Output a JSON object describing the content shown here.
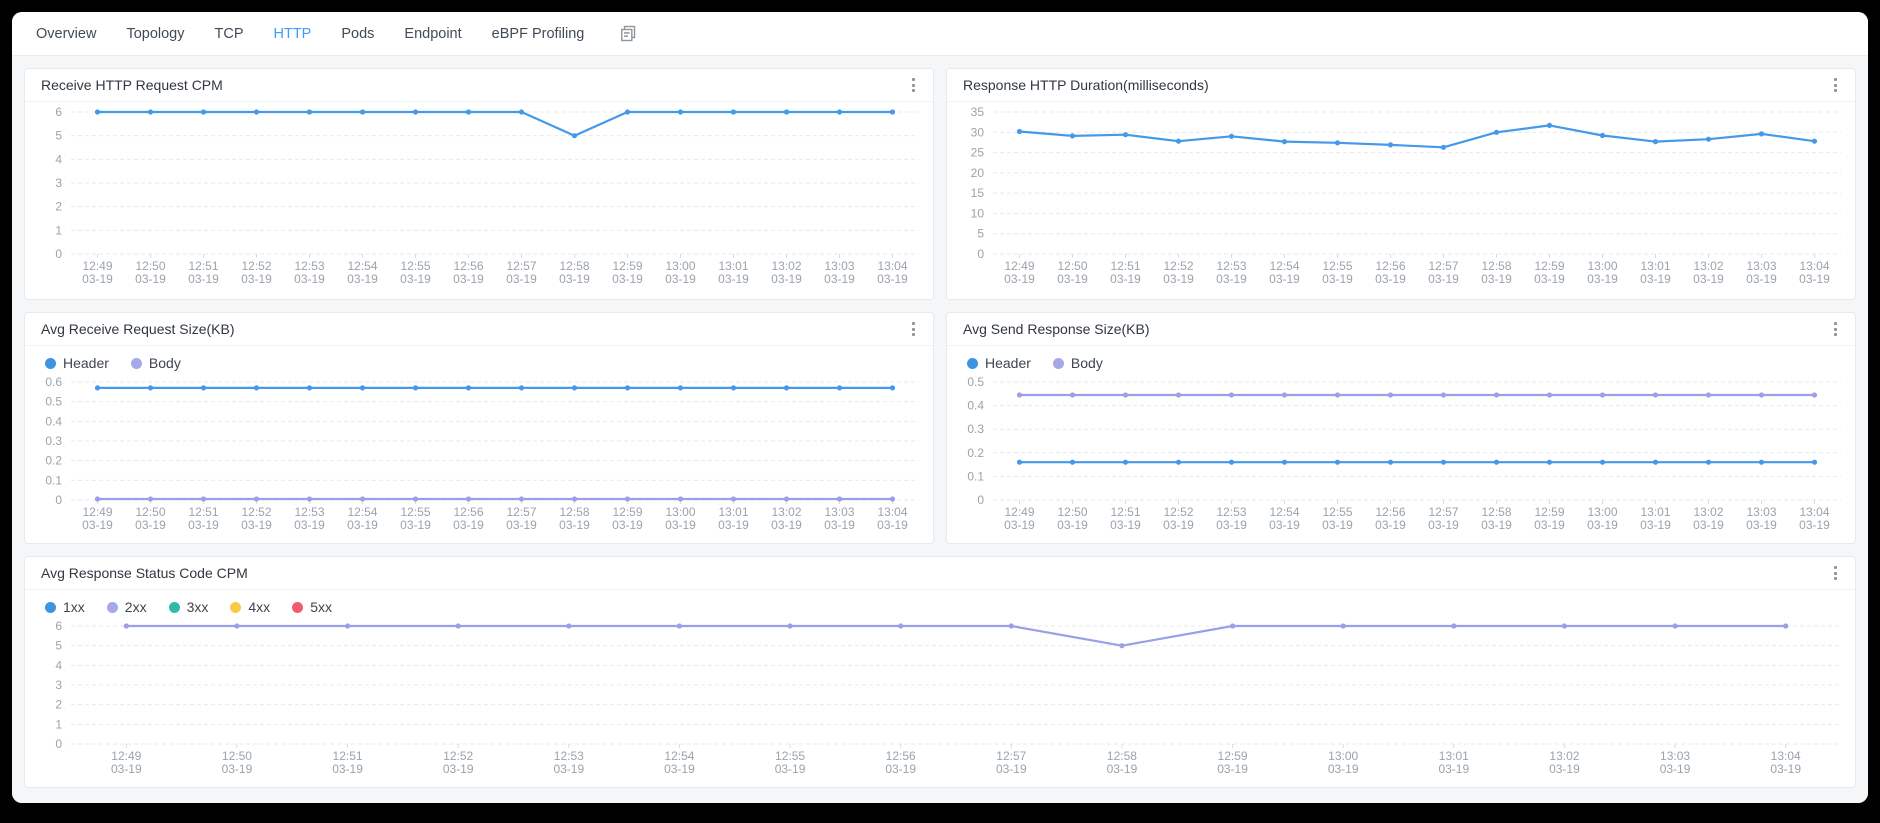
{
  "tab_bar": {
    "tabs": [
      {
        "label": "Overview",
        "active": false
      },
      {
        "label": "Topology",
        "active": false
      },
      {
        "label": "TCP",
        "active": false
      },
      {
        "label": "HTTP",
        "active": true
      },
      {
        "label": "Pods",
        "active": false
      },
      {
        "label": "Endpoint",
        "active": false
      },
      {
        "label": "eBPF Profiling",
        "active": false
      }
    ],
    "icon": "pages-icon"
  },
  "panels": [
    {
      "title": "Receive HTTP Request CPM",
      "menu_icon": "kebab-menu"
    },
    {
      "title": "Response HTTP Duration(milliseconds)",
      "menu_icon": "kebab-menu"
    },
    {
      "title": "Avg Receive Request Size(KB)",
      "menu_icon": "kebab-menu"
    },
    {
      "title": "Avg Send Response Size(KB)",
      "menu_icon": "kebab-menu"
    },
    {
      "title": "Avg Response Status Code CPM",
      "menu_icon": "kebab-menu"
    }
  ],
  "colors": {
    "accent": "#3f9cf7",
    "line_blue": "#4499e8",
    "line_purple": "#9a9fe8",
    "teal": "#33b9aa",
    "yellow": "#f9ca48",
    "red": "#f45972",
    "axis_text": "#9aa3ac",
    "grid": "#e7e9eb"
  },
  "chart_data": [
    {
      "type": "line",
      "title": "Receive HTTP Request CPM",
      "categories": [
        "12:49",
        "12:50",
        "12:51",
        "12:52",
        "12:53",
        "12:54",
        "12:55",
        "12:56",
        "12:57",
        "12:58",
        "12:59",
        "13:00",
        "13:01",
        "13:02",
        "13:03",
        "13:04"
      ],
      "date_label": "03-19",
      "ylim": [
        0,
        6
      ],
      "yticks": [
        "0",
        "1",
        "2",
        "3",
        "4",
        "5",
        "6"
      ],
      "grid": "dashed",
      "series": [
        {
          "name": "",
          "color": "#4499e8",
          "values": [
            6,
            6,
            6,
            6,
            6,
            6,
            6,
            6,
            6,
            5,
            6,
            6,
            6,
            6,
            6,
            6
          ]
        }
      ]
    },
    {
      "type": "line",
      "title": "Response HTTP Duration(milliseconds)",
      "categories": [
        "12:49",
        "12:50",
        "12:51",
        "12:52",
        "12:53",
        "12:54",
        "12:55",
        "12:56",
        "12:57",
        "12:58",
        "12:59",
        "13:00",
        "13:01",
        "13:02",
        "13:03",
        "13:04"
      ],
      "date_label": "03-19",
      "ylim": [
        0,
        35
      ],
      "yticks": [
        "0",
        "5",
        "10",
        "15",
        "20",
        "25",
        "30",
        "35"
      ],
      "grid": "dashed",
      "series": [
        {
          "name": "",
          "color": "#4499e8",
          "values": [
            30.2,
            29.1,
            29.4,
            27.8,
            29,
            27.7,
            27.4,
            26.9,
            26.3,
            30,
            31.7,
            29.2,
            27.7,
            28.3,
            29.6,
            27.8
          ]
        }
      ]
    },
    {
      "type": "line",
      "title": "Avg Receive Request Size(KB)",
      "categories": [
        "12:49",
        "12:50",
        "12:51",
        "12:52",
        "12:53",
        "12:54",
        "12:55",
        "12:56",
        "12:57",
        "12:58",
        "12:59",
        "13:00",
        "13:01",
        "13:02",
        "13:03",
        "13:04"
      ],
      "date_label": "03-19",
      "ylim": [
        0,
        0.6
      ],
      "yticks": [
        "0",
        "0.1",
        "0.2",
        "0.3",
        "0.4",
        "0.5",
        "0.6"
      ],
      "grid": "dashed",
      "legend": [
        {
          "name": "Header",
          "color": "#3d94e0"
        },
        {
          "name": "Body",
          "color": "#a5a9e8"
        }
      ],
      "series": [
        {
          "name": "Header",
          "color": "#4499e8",
          "values": [
            0.57,
            0.57,
            0.57,
            0.57,
            0.57,
            0.57,
            0.57,
            0.57,
            0.57,
            0.57,
            0.57,
            0.57,
            0.57,
            0.57,
            0.57,
            0.57
          ]
        },
        {
          "name": "Body",
          "color": "#9a9fe8",
          "values": [
            0.005,
            0.005,
            0.005,
            0.005,
            0.005,
            0.005,
            0.005,
            0.005,
            0.005,
            0.005,
            0.005,
            0.005,
            0.005,
            0.005,
            0.005,
            0.005
          ]
        }
      ]
    },
    {
      "type": "line",
      "title": "Avg Send Response Size(KB)",
      "categories": [
        "12:49",
        "12:50",
        "12:51",
        "12:52",
        "12:53",
        "12:54",
        "12:55",
        "12:56",
        "12:57",
        "12:58",
        "12:59",
        "13:00",
        "13:01",
        "13:02",
        "13:03",
        "13:04"
      ],
      "date_label": "03-19",
      "ylim": [
        0,
        0.5
      ],
      "yticks": [
        "0",
        "0.1",
        "0.2",
        "0.3",
        "0.4",
        "0.5"
      ],
      "grid": "dashed",
      "legend": [
        {
          "name": "Header",
          "color": "#3d94e0"
        },
        {
          "name": "Body",
          "color": "#a5a9e8"
        }
      ],
      "series": [
        {
          "name": "Body",
          "color": "#9a9fe8",
          "values": [
            0.445,
            0.445,
            0.445,
            0.445,
            0.445,
            0.445,
            0.445,
            0.445,
            0.445,
            0.445,
            0.445,
            0.445,
            0.445,
            0.445,
            0.445,
            0.445
          ]
        },
        {
          "name": "Header",
          "color": "#4499e8",
          "values": [
            0.16,
            0.16,
            0.16,
            0.16,
            0.16,
            0.16,
            0.16,
            0.16,
            0.16,
            0.16,
            0.16,
            0.16,
            0.16,
            0.16,
            0.16,
            0.16
          ]
        }
      ]
    },
    {
      "type": "line",
      "title": "Avg Response Status Code CPM",
      "categories": [
        "12:49",
        "12:50",
        "12:51",
        "12:52",
        "12:53",
        "12:54",
        "12:55",
        "12:56",
        "12:57",
        "12:58",
        "12:59",
        "13:00",
        "13:01",
        "13:02",
        "13:03",
        "13:04"
      ],
      "date_label": "03-19",
      "ylim": [
        0,
        6
      ],
      "yticks": [
        "0",
        "1",
        "2",
        "3",
        "4",
        "5",
        "6"
      ],
      "grid": "dashed",
      "legend": [
        {
          "name": "1xx",
          "color": "#3d94e0"
        },
        {
          "name": "2xx",
          "color": "#a5a9e8"
        },
        {
          "name": "3xx",
          "color": "#33b9aa"
        },
        {
          "name": "4xx",
          "color": "#f9ca48"
        },
        {
          "name": "5xx",
          "color": "#f45972"
        }
      ],
      "series": [
        {
          "name": "2xx",
          "color": "#9a9fe8",
          "values": [
            6,
            6,
            6,
            6,
            6,
            6,
            6,
            6,
            6,
            5,
            6,
            6,
            6,
            6,
            6,
            6
          ]
        }
      ]
    }
  ]
}
